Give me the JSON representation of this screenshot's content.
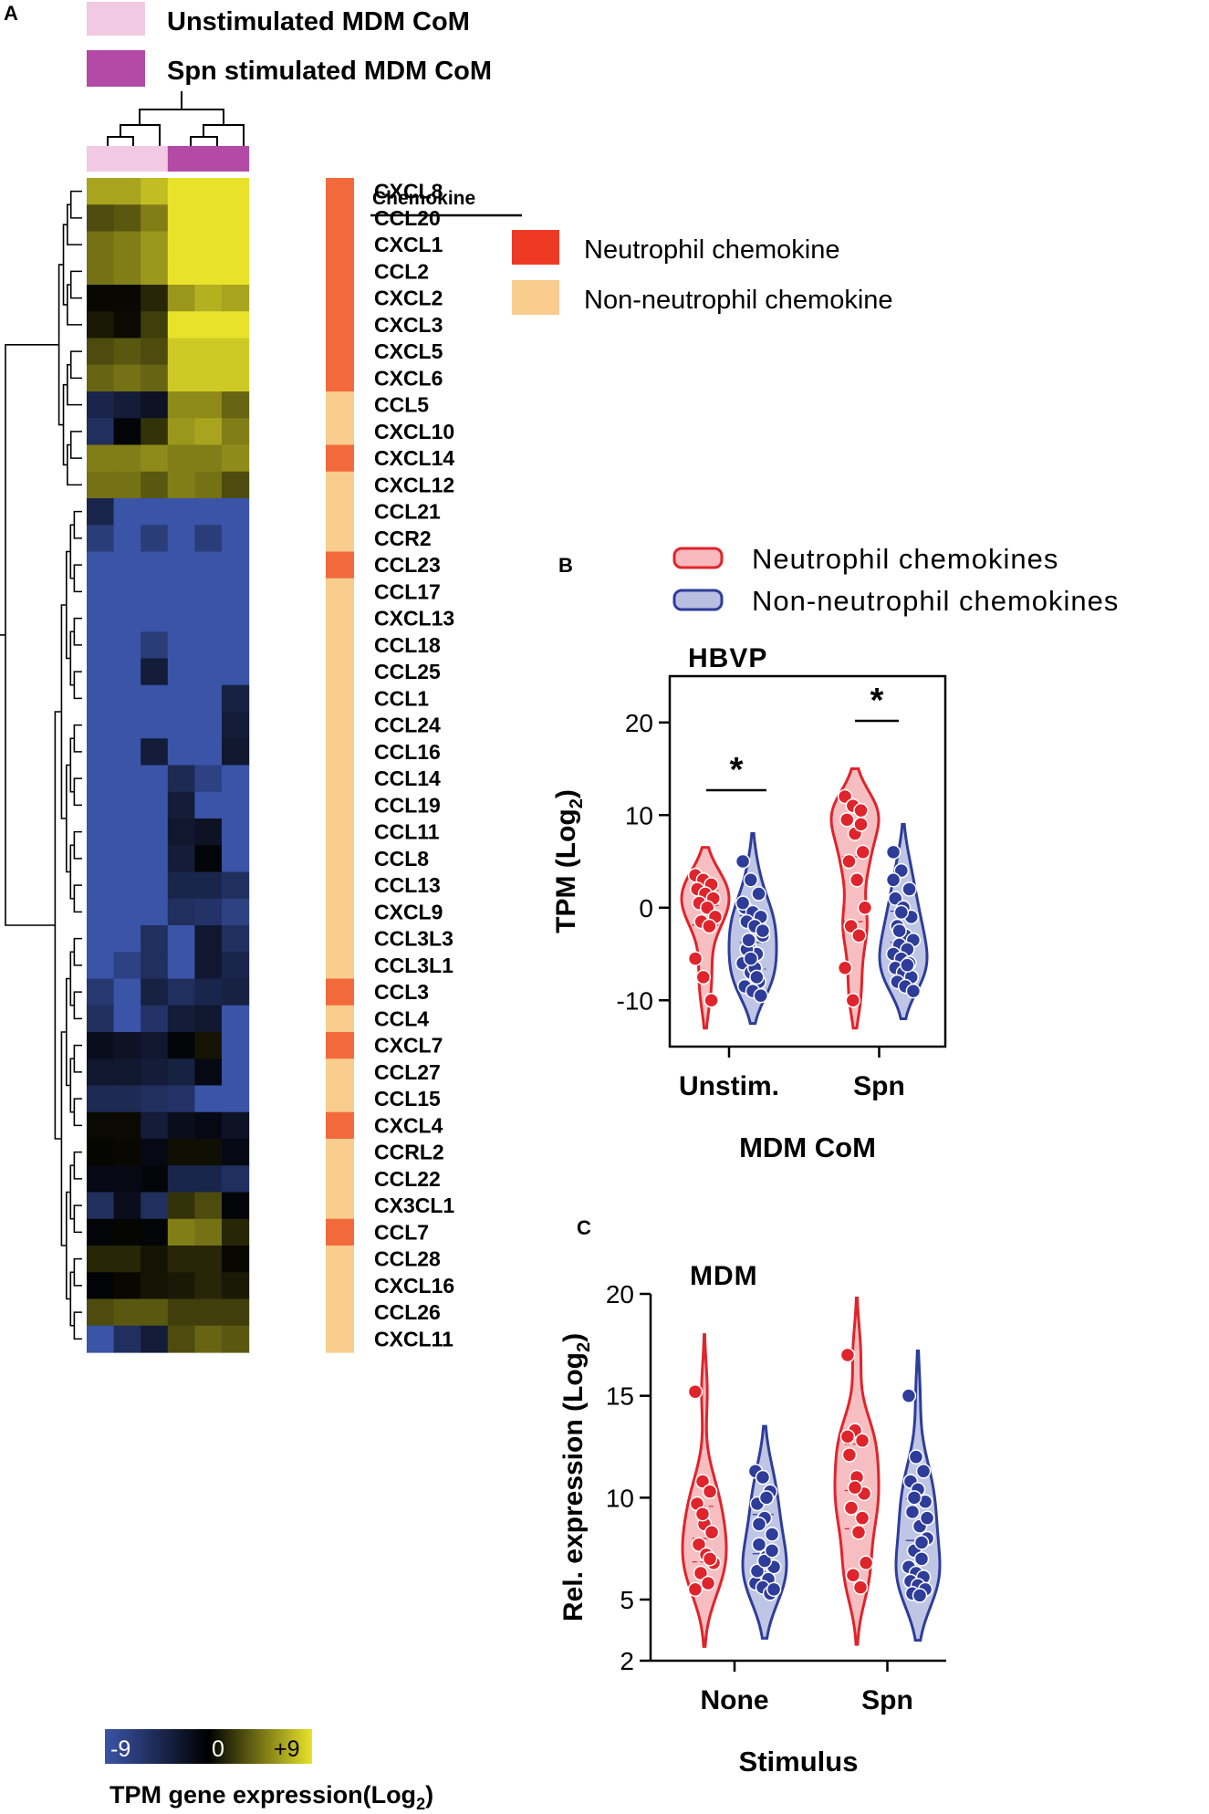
{
  "panel_labels": {
    "a": "A",
    "b": "B",
    "c": "C"
  },
  "colors": {
    "unstim": "#f2c9e2",
    "spn": "#b24aa6",
    "neutrophil": "#f26a3b",
    "non_neutrophil": "#f8cd8e",
    "heat_low": "#3a54a8",
    "heat_mid": "#000000",
    "heat_high": "#e8e32a",
    "violin_red": "#e0242b",
    "violin_blue": "#2e3d9a"
  },
  "chart_data": [
    {
      "type": "heatmap",
      "legend_groups": [
        "Unstimulated MDM CoM",
        "Spn stimulated MDM CoM"
      ],
      "column_groups": [
        "unstim",
        "unstim",
        "unstim",
        "spn",
        "spn",
        "spn"
      ],
      "annotation_header": "Chemokine",
      "annotation_legend": [
        "Neutrophil chemokine",
        "Non-neutrophil chemokine"
      ],
      "colorbar": {
        "min_label": "-9",
        "mid_label": "0",
        "max_label": "+9",
        "min": -9,
        "max": 9,
        "label": "TPM gene expression(Log",
        "label_sub": "2",
        "label_end": ")"
      },
      "rows": [
        {
          "gene": "CXCL8",
          "cls": "N",
          "values": [
            6.5,
            6.5,
            7.5,
            9,
            9,
            9
          ]
        },
        {
          "gene": "CCL20",
          "cls": "N",
          "values": [
            3,
            3.5,
            5,
            9,
            9,
            9
          ]
        },
        {
          "gene": "CXCL1",
          "cls": "N",
          "values": [
            4.5,
            5,
            6,
            9,
            9,
            9
          ]
        },
        {
          "gene": "CCL2",
          "cls": "N",
          "values": [
            4.5,
            5,
            6,
            9,
            9,
            9
          ]
        },
        {
          "gene": "CXCL2",
          "cls": "N",
          "values": [
            0.3,
            0.3,
            1.5,
            6,
            7,
            6.5
          ]
        },
        {
          "gene": "CXCL3",
          "cls": "N",
          "values": [
            1,
            0.4,
            2.5,
            9,
            9,
            9
          ]
        },
        {
          "gene": "CXCL5",
          "cls": "N",
          "values": [
            3,
            3.5,
            3,
            8,
            8,
            8
          ]
        },
        {
          "gene": "CXCL6",
          "cls": "N",
          "values": [
            4,
            4.5,
            4,
            8,
            8,
            8
          ]
        },
        {
          "gene": "CCL5",
          "cls": "O",
          "values": [
            -4,
            -3,
            -2,
            5.5,
            5.5,
            4
          ]
        },
        {
          "gene": "CXCL10",
          "cls": "O",
          "values": [
            -5,
            -0.5,
            2,
            6,
            6.5,
            5
          ]
        },
        {
          "gene": "CXCL14",
          "cls": "N",
          "values": [
            5,
            5,
            5.5,
            5,
            5,
            5.5
          ]
        },
        {
          "gene": "CXCL12",
          "cls": "O",
          "values": [
            4.5,
            4.5,
            3.5,
            5,
            4.5,
            3
          ]
        },
        {
          "gene": "CCL21",
          "cls": "O",
          "values": [
            -4,
            -9,
            -9,
            -9,
            -9,
            -9
          ]
        },
        {
          "gene": "CCR2",
          "cls": "O",
          "values": [
            -6.5,
            -9,
            -6.5,
            -9,
            -6.5,
            -9
          ]
        },
        {
          "gene": "CCL23",
          "cls": "N",
          "values": [
            -9,
            -9,
            -9,
            -9,
            -9,
            -9
          ]
        },
        {
          "gene": "CCL17",
          "cls": "O",
          "values": [
            -9,
            -9,
            -9,
            -9,
            -9,
            -9
          ]
        },
        {
          "gene": "CXCL13",
          "cls": "O",
          "values": [
            -9,
            -9,
            -9,
            -9,
            -9,
            -9
          ]
        },
        {
          "gene": "CCL18",
          "cls": "O",
          "values": [
            -9,
            -9,
            -6.5,
            -9,
            -9,
            -9
          ]
        },
        {
          "gene": "CCL25",
          "cls": "O",
          "values": [
            -9,
            -9,
            -3,
            -9,
            -9,
            -9
          ]
        },
        {
          "gene": "CCL1",
          "cls": "O",
          "values": [
            -9,
            -9,
            -9,
            -9,
            -9,
            -3.5
          ]
        },
        {
          "gene": "CCL24",
          "cls": "O",
          "values": [
            -9,
            -9,
            -9,
            -9,
            -9,
            -3
          ]
        },
        {
          "gene": "CCL16",
          "cls": "O",
          "values": [
            -9,
            -9,
            -3,
            -9,
            -9,
            -2.5
          ]
        },
        {
          "gene": "CCL14",
          "cls": "O",
          "values": [
            -9,
            -9,
            -9,
            -4.5,
            -7,
            -9
          ]
        },
        {
          "gene": "CCL19",
          "cls": "O",
          "values": [
            -9,
            -9,
            -9,
            -3,
            -9,
            -9
          ]
        },
        {
          "gene": "CCL11",
          "cls": "O",
          "values": [
            -9,
            -9,
            -9,
            -2.5,
            -2,
            -9
          ]
        },
        {
          "gene": "CCL8",
          "cls": "O",
          "values": [
            -9,
            -9,
            -9,
            -3,
            -0.5,
            -9
          ]
        },
        {
          "gene": "CCL13",
          "cls": "O",
          "values": [
            -9,
            -9,
            -9,
            -4,
            -4,
            -5
          ]
        },
        {
          "gene": "CXCL9",
          "cls": "O",
          "values": [
            -9,
            -9,
            -9,
            -5,
            -5.5,
            -7
          ]
        },
        {
          "gene": "CCL3L3",
          "cls": "O",
          "values": [
            -9,
            -9,
            -5,
            -9,
            -2.5,
            -5
          ]
        },
        {
          "gene": "CCL3L1",
          "cls": "O",
          "values": [
            -9,
            -7,
            -5,
            -9,
            -2.5,
            -4
          ]
        },
        {
          "gene": "CCL3",
          "cls": "N",
          "values": [
            -6,
            -9,
            -3.5,
            -5,
            -4,
            -3.5
          ]
        },
        {
          "gene": "CCL4",
          "cls": "O",
          "values": [
            -5,
            -9,
            -5.5,
            -3,
            -2.5,
            -9
          ]
        },
        {
          "gene": "CXCL7",
          "cls": "N",
          "values": [
            -1.5,
            -2,
            -2.5,
            -0.5,
            0.8,
            -9
          ]
        },
        {
          "gene": "CCL27",
          "cls": "O",
          "values": [
            -2.5,
            -2.5,
            -3,
            -3.5,
            -1,
            -9
          ]
        },
        {
          "gene": "CCL15",
          "cls": "O",
          "values": [
            -4.5,
            -4.5,
            -5,
            -5.5,
            -9,
            -9
          ]
        },
        {
          "gene": "CXCL4",
          "cls": "N",
          "values": [
            0.4,
            0.4,
            -3,
            -1.5,
            -1,
            -2
          ]
        },
        {
          "gene": "CCRL2",
          "cls": "O",
          "values": [
            0.2,
            0.3,
            -1,
            0.6,
            0.6,
            -1
          ]
        },
        {
          "gene": "CCL22",
          "cls": "O",
          "values": [
            -1,
            -1,
            -0.5,
            -4,
            -4,
            -5
          ]
        },
        {
          "gene": "CX3CL1",
          "cls": "O",
          "values": [
            -5,
            -1.5,
            -5,
            2,
            3,
            -0.5
          ]
        },
        {
          "gene": "CCL7",
          "cls": "N",
          "values": [
            -0.5,
            0.2,
            -0.5,
            5,
            4.5,
            1.5
          ]
        },
        {
          "gene": "CCL28",
          "cls": "O",
          "values": [
            1.5,
            1.5,
            0.8,
            1.5,
            1.5,
            0.3
          ]
        },
        {
          "gene": "CXCL16",
          "cls": "O",
          "values": [
            -0.3,
            0.3,
            0.8,
            1,
            1.5,
            1
          ]
        },
        {
          "gene": "CCL26",
          "cls": "O",
          "values": [
            3,
            3.5,
            3.5,
            2.5,
            2.5,
            2.5
          ]
        },
        {
          "gene": "CXCL11",
          "cls": "O",
          "values": [
            -9,
            -5,
            -3,
            3,
            4,
            3.5
          ]
        }
      ]
    },
    {
      "type": "violin",
      "panel": "B",
      "title": "HBVP",
      "ylabel": "TPM  (Log",
      "ylabel_sub": "2",
      "ylabel_end": ")",
      "xlabel": "MDM CoM",
      "categories": [
        "Unstim.",
        "Spn"
      ],
      "ylim": [
        -15,
        25
      ],
      "yticks": [
        -10,
        0,
        10,
        20
      ],
      "legend": [
        "Neutrophil chemokines",
        "Non-neutrophil chemokines"
      ],
      "significance": [
        "*",
        "*"
      ],
      "series": [
        {
          "name": "Neutrophil chemokines",
          "color": "red",
          "values": [
            [
              3.5,
              3,
              2.5,
              2,
              1.5,
              1,
              0.5,
              0,
              -1,
              -1.5,
              -2,
              -5.5,
              -7.5,
              -10
            ],
            [
              12,
              11,
              10.5,
              9.5,
              8,
              6,
              5,
              3,
              0,
              -2,
              -3,
              -6.5,
              -10,
              9
            ]
          ]
        },
        {
          "name": "Non-neutrophil chemokines",
          "color": "blue",
          "values": [
            [
              5,
              3,
              1.5,
              0,
              -0.5,
              -1,
              -1.5,
              -2,
              -3,
              -4,
              -5,
              -6,
              -7,
              -8,
              -8.5,
              -9,
              -9.5,
              -4.5,
              -6.5,
              -2.5,
              -3.5,
              -7.5,
              0.5,
              -5.5
            ],
            [
              6,
              4,
              2,
              1,
              0,
              -1,
              -2,
              -3,
              -3.5,
              -4,
              -4.5,
              -5,
              -5.5,
              -6,
              -6.5,
              -7,
              -7.5,
              -8,
              -8.5,
              -9,
              -2.5,
              -6.2,
              3,
              -0.5
            ]
          ]
        }
      ]
    },
    {
      "type": "violin",
      "panel": "C",
      "title": "MDM",
      "ylabel": "Rel. expression (Log",
      "ylabel_sub": "2",
      "ylabel_end": ")",
      "xlabel": "Stimulus",
      "categories": [
        "None",
        "Spn"
      ],
      "ylim": [
        2,
        20
      ],
      "yticks": [
        2,
        5,
        10,
        15,
        20
      ],
      "series": [
        {
          "name": "Neutrophil chemokines",
          "color": "red",
          "values": [
            [
              15.2,
              10.8,
              10.3,
              9.7,
              8.7,
              8.3,
              7.7,
              7.2,
              6.8,
              6.3,
              5.8,
              5.5,
              9.2,
              7.0
            ],
            [
              17.0,
              13.3,
              12.8,
              12.1,
              11.0,
              10.2,
              9.5,
              8.3,
              6.8,
              6.2,
              5.6,
              13.0,
              10.5,
              9.0
            ]
          ]
        },
        {
          "name": "Non-neutrophil chemokines",
          "color": "blue",
          "values": [
            [
              11.3,
              11.0,
              10.3,
              9.7,
              9.0,
              8.2,
              7.7,
              7.1,
              6.6,
              6.2,
              6.0,
              5.8,
              5.6,
              5.3,
              6.4,
              6.9,
              7.4,
              8.7,
              10.0,
              5.5
            ],
            [
              15.0,
              12.0,
              11.3,
              10.8,
              10.4,
              9.8,
              9.3,
              8.6,
              8.0,
              7.4,
              7.0,
              6.6,
              6.3,
              6.1,
              5.9,
              5.7,
              5.5,
              5.3,
              5.2,
              9.0,
              10.0,
              7.8
            ]
          ]
        }
      ]
    }
  ]
}
